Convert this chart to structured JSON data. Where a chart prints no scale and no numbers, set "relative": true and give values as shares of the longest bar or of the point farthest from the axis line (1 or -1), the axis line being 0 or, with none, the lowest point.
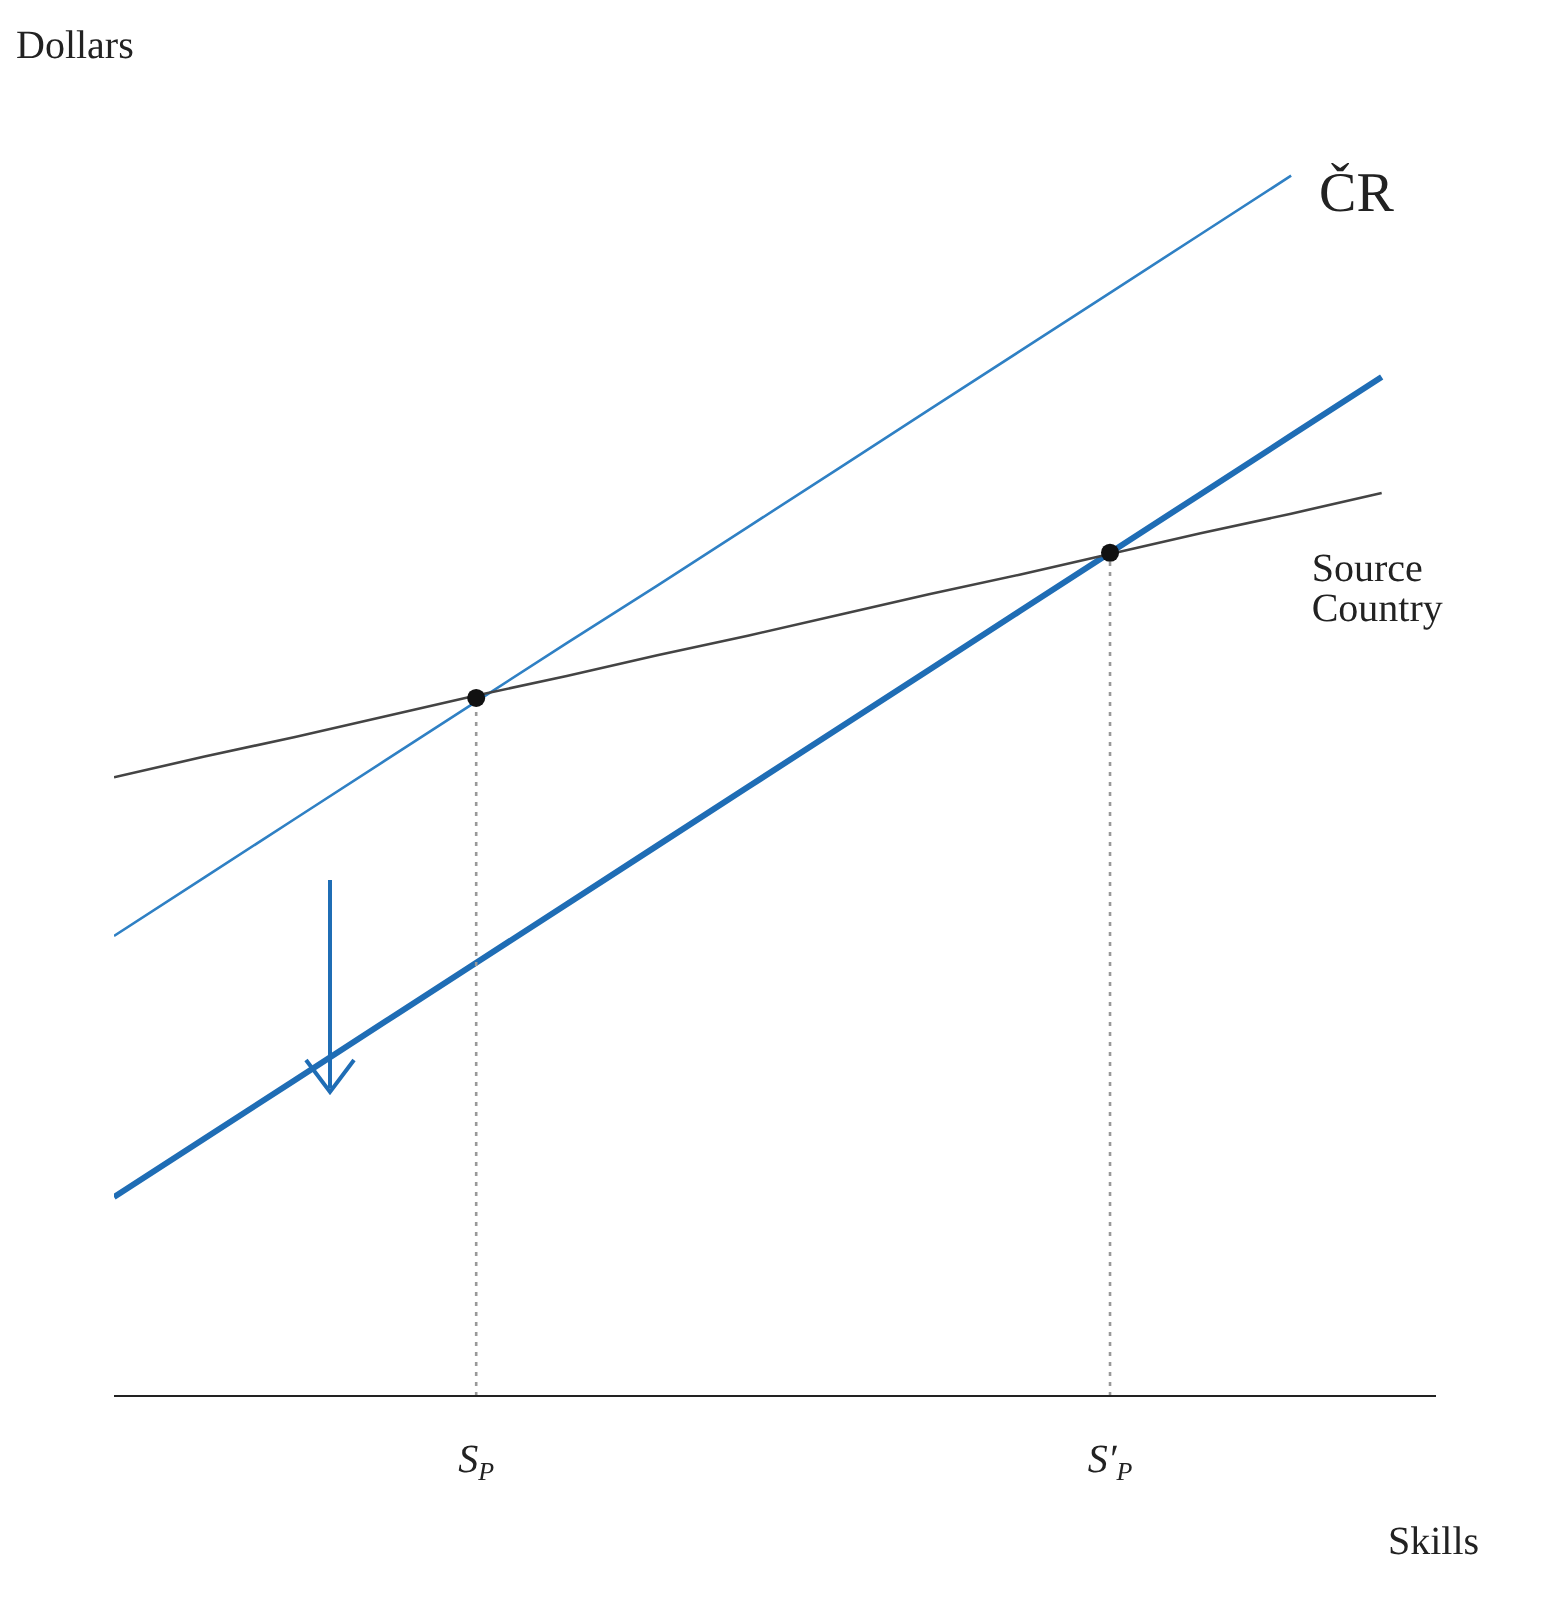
{
  "chart_data": {
    "type": "line",
    "relative": true,
    "xlabel": "Skills",
    "ylabel": "Dollars",
    "categories": [
      null,
      null,
      null,
      null,
      "S$_{P}$",
      null,
      null,
      null,
      null,
      null,
      null,
      "S′$_{P}$",
      null,
      null,
      null
    ],
    "series": [
      {
        "name": "ČR",
        "color": "#2f80c4",
        "values": [
          0.377,
          0.425,
          0.473,
          0.521,
          0.569,
          0.617,
          0.664,
          0.712,
          0.76,
          0.808,
          0.856,
          0.904,
          0.952,
          1.0,
          null
        ]
      },
      {
        "color": "#1f6db5",
        "values": [
          0.163,
          0.211,
          0.259,
          0.307,
          0.355,
          0.403,
          0.451,
          0.499,
          0.547,
          0.595,
          0.643,
          0.691,
          0.739,
          0.787,
          0.835
        ]
      },
      {
        "name": "Source Country",
        "color": "#444444",
        "values": [
          0.507,
          0.524,
          0.54,
          0.557,
          0.574,
          0.59,
          0.607,
          0.623,
          0.64,
          0.657,
          0.673,
          0.69,
          0.707,
          0.723,
          0.74
        ]
      },
      {
        "type": "line",
        "line_style": "dotted",
        "color": "#999999",
        "x": [
          "S$_{P}$",
          "S$_{P}$"
        ],
        "values": [
          0,
          0.572
        ]
      },
      {
        "type": "line",
        "line_style": "dotted",
        "color": "#999999",
        "x": [
          "S′$_{P}$",
          "S′$_{P}$"
        ],
        "values": [
          0,
          0.691
        ]
      },
      {
        "type": "scatter",
        "marker": "circle",
        "color": "#111111",
        "x": [
          "S$_{P}$",
          "S′$_{P}$"
        ],
        "values": [
          0.572,
          0.691
        ]
      }
    ]
  }
}
